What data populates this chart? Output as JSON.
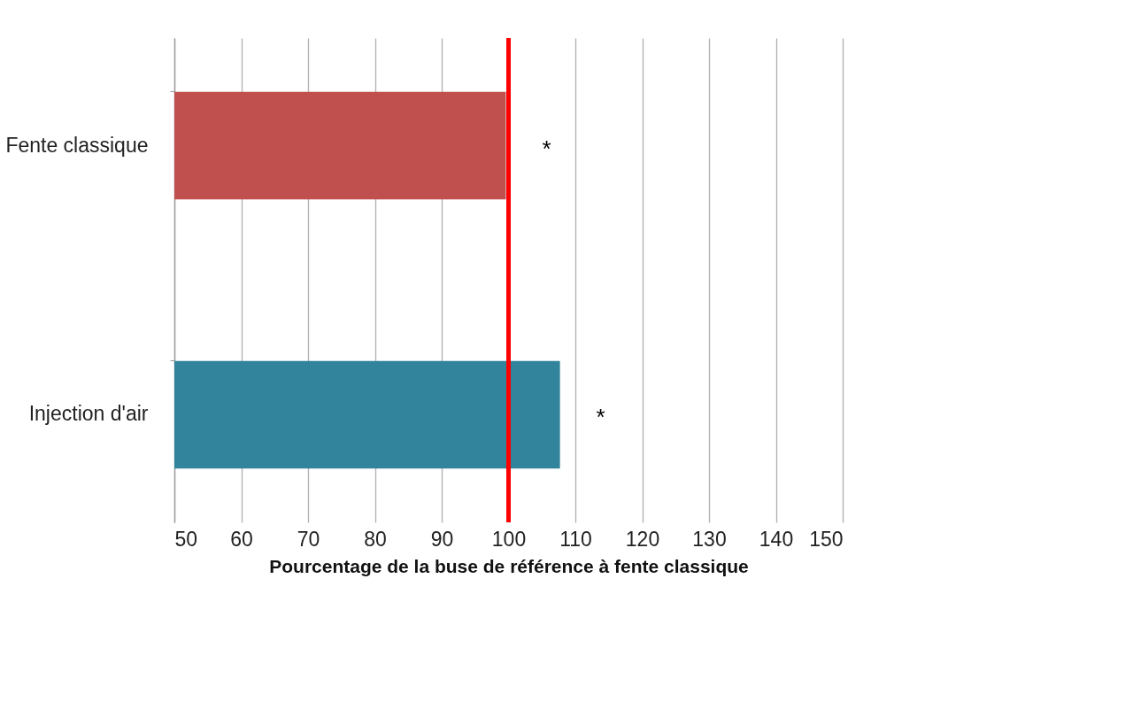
{
  "chart_data": {
    "type": "bar",
    "orientation": "horizontal",
    "categories": [
      "Fente classique",
      "Injection d'air"
    ],
    "values": [
      99.6,
      107.7
    ],
    "colors": [
      "#c0504d",
      "#31849b"
    ],
    "xlabel": "Pourcentage de la buse de référence  à fente classique",
    "xlim": [
      50,
      150
    ],
    "xticks": [
      50,
      60,
      70,
      80,
      90,
      100,
      110,
      120,
      130,
      140,
      150
    ],
    "grid": "x",
    "ref_lines": [
      {
        "axis": "x",
        "value": 100,
        "color": "#ff0000"
      }
    ],
    "annotations": [
      "*",
      "*"
    ]
  }
}
